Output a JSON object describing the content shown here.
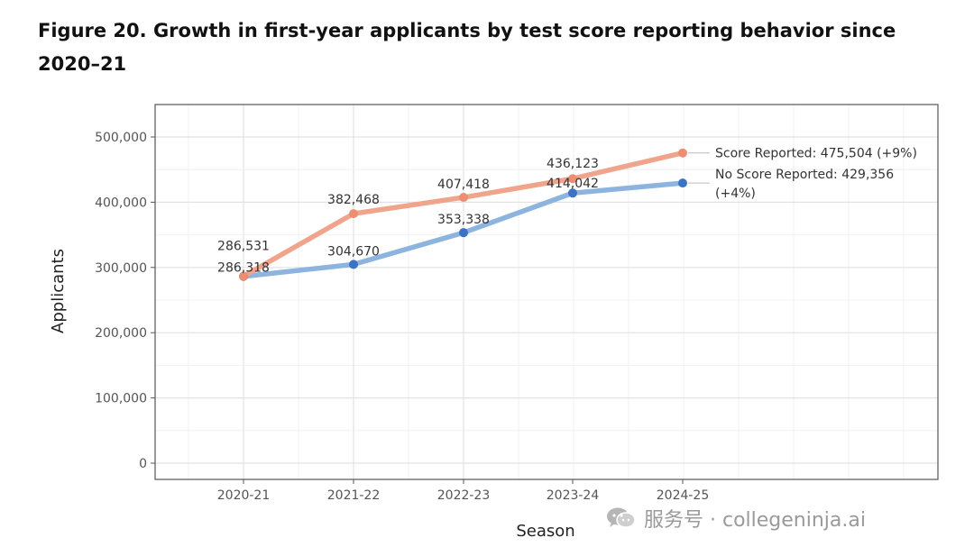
{
  "figure": {
    "title": "Figure 20. Growth in first-year applicants by test score reporting behavior since 2020–21"
  },
  "chart_data": {
    "type": "line",
    "categories": [
      "2020-21",
      "2021-22",
      "2022-23",
      "2023-24",
      "2024-25"
    ],
    "xlabel": "Season",
    "ylabel": "Applicants",
    "ylim": [
      0,
      525000
    ],
    "yticks": [
      0,
      100000,
      200000,
      300000,
      400000,
      500000
    ],
    "ytick_labels": [
      "0",
      "100,000",
      "200,000",
      "300,000",
      "400,000",
      "500,000"
    ],
    "grid": true,
    "series": [
      {
        "name": "Score Reported",
        "color": "#f0a48c",
        "point_color": "#ec8e72",
        "values": [
          286531,
          382468,
          407418,
          436123,
          475504
        ],
        "labels": [
          "286,531",
          "382,468",
          "407,418",
          "436,123",
          ""
        ],
        "end_label": [
          "Score Reported: 475,504 (+9%)"
        ]
      },
      {
        "name": "No Score Reported",
        "color": "#8cb4df",
        "point_color": "#3a72c4",
        "values": [
          286318,
          304670,
          353338,
          414042,
          429356
        ],
        "labels": [
          "286,318",
          "304,670",
          "353,338",
          "414,042",
          ""
        ],
        "end_label": [
          "No Score Reported: 429,356",
          "(+4%)"
        ]
      }
    ]
  },
  "watermark": {
    "text": "服务号 · collegeninja.ai",
    "icon": "wechat-icon"
  }
}
